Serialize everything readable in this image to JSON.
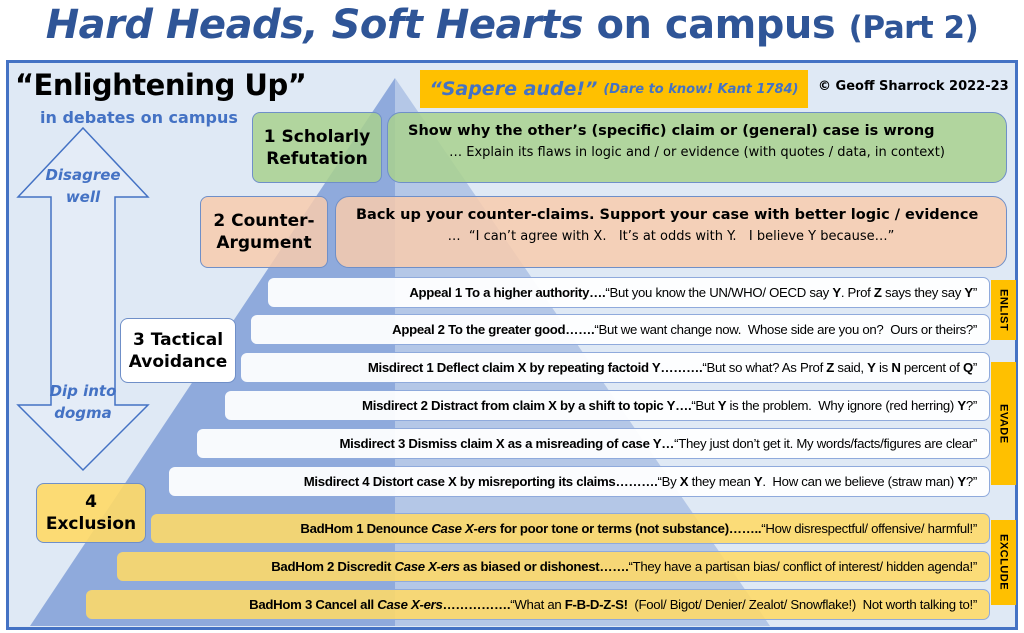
{
  "title": {
    "italic": "Hard Heads, Soft Hearts",
    "rest": " on campus ",
    "part": "(Part 2)"
  },
  "heading": "“Enlightening Up”",
  "subheading": "in debates on campus",
  "arrow": {
    "top": "Disagree well",
    "bottom": "Dip into dogma"
  },
  "motto": {
    "main": "“Sapere aude!”",
    "note": "(Dare to know! Kant 1784)"
  },
  "copyright": "© Geoff Sharrock 2022-23",
  "colors": {
    "title": "#2f5597",
    "accent": "#4472c4",
    "gold": "#ffc000",
    "green": "#a9d18e",
    "peach": "#f8cbad",
    "yellow": "#ffd966",
    "pyramid": "#8faadc"
  },
  "levels": [
    {
      "label_line1": "1  Scholarly",
      "label_line2": "Refutation",
      "desc_head": "Show why the other’s (specific) claim or (general) case is wrong",
      "desc_sub": "…  Explain its flaws in logic and / or evidence (with quotes / data, in context)"
    },
    {
      "label_line1": "2  Counter-",
      "label_line2": "Argument",
      "desc_head": "Back up your counter-claims.  Support your case with better logic / evidence",
      "desc_sub": "…  “I can’t agree with X.   It’s at odds with Y.   I believe Y because…”"
    },
    {
      "label_line1": "3  Tactical",
      "label_line2": "Avoidance"
    },
    {
      "label_line1": "4",
      "label_line2": "Exclusion"
    }
  ],
  "tabs": [
    "ENLIST",
    "EVADE",
    "EXCLUDE"
  ],
  "rows": [
    {
      "label": "Appeal 1  To a higher authority….",
      "quote": [
        [
          "“But you know the UN/WHO/ OECD say ",
          0
        ],
        [
          "Y",
          1
        ],
        [
          ". Prof ",
          0
        ],
        [
          "Z",
          1
        ],
        [
          " says they say ",
          0
        ],
        [
          "Y",
          1
        ],
        [
          "”",
          0
        ]
      ]
    },
    {
      "label": "Appeal 2  To the greater good…….",
      "quote": [
        [
          "“But we want change now.  Whose side are you on?  Ours or theirs?”",
          0
        ]
      ]
    },
    {
      "label": "Misdirect 1  Deflect claim X by repeating factoid Y……….",
      "quote": [
        [
          "“But so what? As Prof ",
          0
        ],
        [
          "Z",
          1
        ],
        [
          " said, ",
          0
        ],
        [
          "Y",
          1
        ],
        [
          " is ",
          0
        ],
        [
          "N",
          1
        ],
        [
          " percent of ",
          0
        ],
        [
          "Q",
          1
        ],
        [
          "”",
          0
        ]
      ]
    },
    {
      "label": "Misdirect 2  Distract from claim X by a shift to topic Y….",
      "quote": [
        [
          "“But ",
          0
        ],
        [
          "Y",
          1
        ],
        [
          " is the problem.  Why ignore (red herring) ",
          0
        ],
        [
          "Y",
          1
        ],
        [
          "?”",
          0
        ]
      ]
    },
    {
      "label": "Misdirect 3  Dismiss claim X as a misreading of case Y…",
      "quote": [
        [
          "“They just don’t get it. My words/facts/figures are clear”",
          0
        ]
      ]
    },
    {
      "label": "Misdirect 4  Distort case X by misreporting its claims……….",
      "quote": [
        [
          "“By ",
          0
        ],
        [
          "X",
          1
        ],
        [
          " they mean ",
          0
        ],
        [
          "Y",
          1
        ],
        [
          ".  How can we believe (straw man) ",
          0
        ],
        [
          "Y",
          1
        ],
        [
          "?”",
          0
        ]
      ]
    },
    {
      "label": "BadHom 1  Denounce <i>Case X-ers</i> for poor tone or terms (not substance)……..",
      "quote": [
        [
          "“How disrespectful/ offensive/ harmful!”",
          0
        ]
      ]
    },
    {
      "label": "BadHom 2  Discredit <i>Case X-ers</i> as biased or dishonest…….",
      "quote": [
        [
          "“They have a partisan bias/ conflict of interest/ hidden agenda!”",
          0
        ]
      ]
    },
    {
      "label": "BadHom 3  Cancel all <i>Case X-ers</i>…………….",
      "quote": [
        [
          "“What an ",
          0
        ],
        [
          "F-B-D-Z-S!",
          1
        ],
        [
          "  (Fool/ Bigot/ Denier/ Zealot/ Snowflake!)  Not worth talking to!”",
          0
        ]
      ]
    }
  ]
}
